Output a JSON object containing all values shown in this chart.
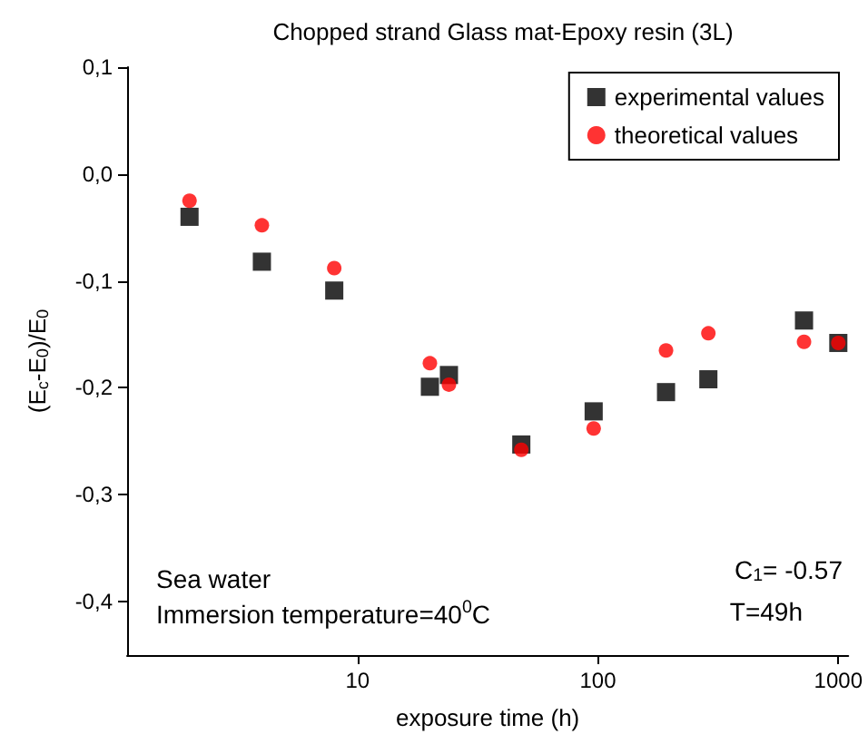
{
  "chart_data": {
    "type": "scatter",
    "title": "Chopped strand Glass mat-Epoxy resin (3L)",
    "xlabel": "exposure time (h)",
    "ylabel": "(E$_{c}$-E$_{0}$)/E$_{0}$",
    "x": [
      2,
      4,
      8,
      20,
      24,
      48,
      96,
      192,
      288,
      720,
      1000
    ],
    "series": [
      {
        "name": "experimental values",
        "color": "#000000",
        "marker": "square",
        "values": [
          -0.04,
          -0.082,
          -0.109,
          -0.199,
          -0.188,
          -0.253,
          -0.222,
          -0.204,
          -0.192,
          -0.137,
          -0.158
        ]
      },
      {
        "name": "theoretical values",
        "color": "#ff0000",
        "marker": "circle",
        "values": [
          -0.025,
          -0.048,
          -0.088,
          -0.177,
          -0.197,
          -0.258,
          -0.238,
          -0.165,
          -0.149,
          -0.157,
          -0.158
        ]
      }
    ],
    "log": "x",
    "xlim": [
      1.1,
      1100
    ],
    "xticks": [
      10,
      100,
      1000
    ],
    "ylim": [
      -0.45,
      0.1
    ],
    "yticks": [
      {
        "value": -0.4,
        "label": "-0,4"
      },
      {
        "value": -0.3,
        "label": "-0,3"
      },
      {
        "value": -0.2,
        "label": "-0,2"
      },
      {
        "value": -0.1,
        "label": "-0,1"
      },
      {
        "value": 0,
        "label": "0,0"
      },
      {
        "value": 0.1,
        "label": "0,1"
      }
    ],
    "grid": false,
    "legend": "top right",
    "annotations": [
      "Sea water",
      "Immersion temperature=40$^{0}$C",
      "C$_{1}$= -0.57",
      "T=49h"
    ]
  }
}
